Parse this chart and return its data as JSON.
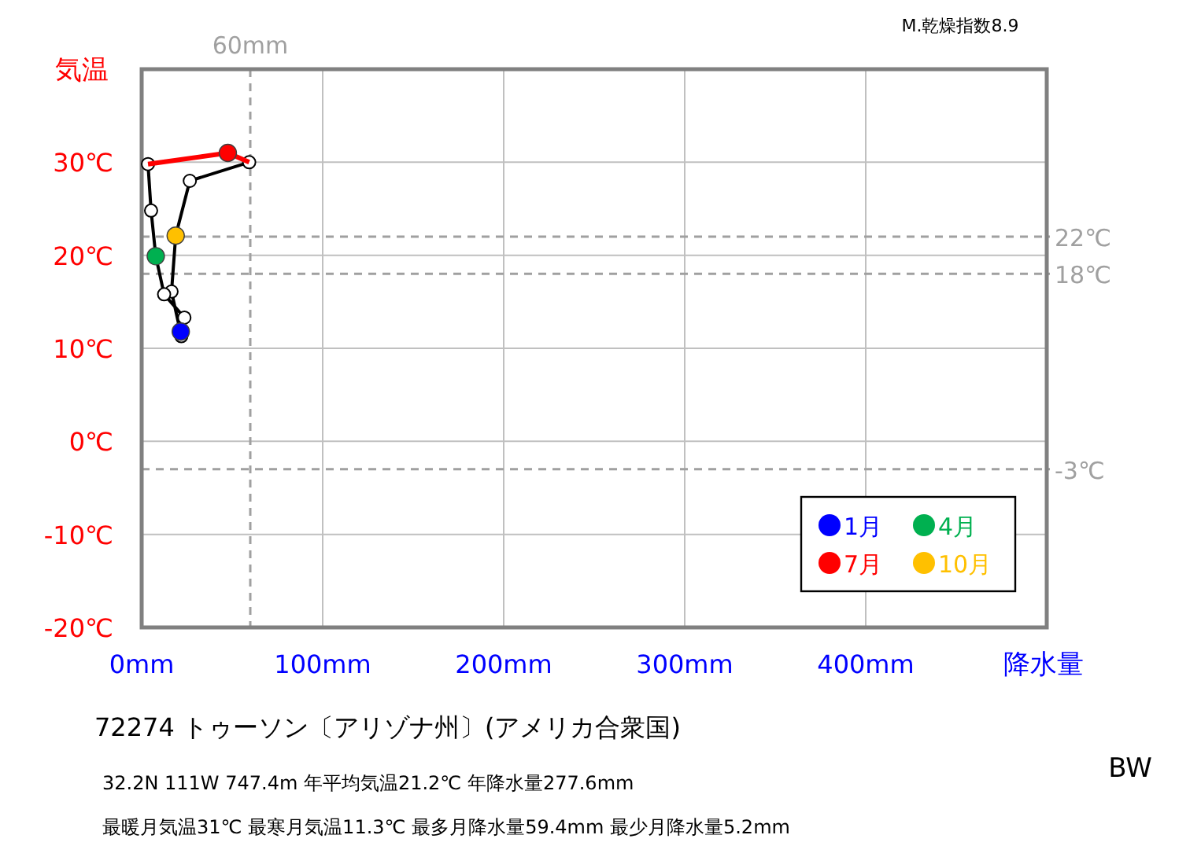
{
  "chart_data": {
    "type": "line",
    "title": "72274 トゥーソン〔アリゾナ州〕(アメリカ合衆国)",
    "ylabel": "気温",
    "xlabel": "降水量",
    "annotations": [
      "M.乾燥指数8.9",
      "32.2N 111W 747.4m 年平均気温21.2℃ 年降水量277.6mm",
      "最暖月気温31℃ 最寒月気温11.3℃ 最多月降水量59.4mm 最少月降水量5.2mm",
      "BW"
    ],
    "xlim": [
      0,
      500
    ],
    "ylim": [
      -20,
      40
    ],
    "xticks": [
      {
        "value": 0,
        "label": "0mm"
      },
      {
        "value": 100,
        "label": "100mm"
      },
      {
        "value": 200,
        "label": "200mm"
      },
      {
        "value": 300,
        "label": "300mm"
      },
      {
        "value": 400,
        "label": "400mm"
      }
    ],
    "yticks": [
      {
        "value": -20,
        "label": "-20℃"
      },
      {
        "value": -10,
        "label": "-10℃"
      },
      {
        "value": 0,
        "label": "0℃"
      },
      {
        "value": 10,
        "label": "10℃"
      },
      {
        "value": 20,
        "label": "20℃"
      },
      {
        "value": 30,
        "label": "30℃"
      }
    ],
    "grid": true,
    "legend": "bottom right",
    "ref_lines": [
      {
        "axis": "y",
        "value": 22,
        "label": "22℃",
        "color": "#a0a0a0",
        "line_style": "dashed"
      },
      {
        "axis": "y",
        "value": 18,
        "label": "18℃",
        "color": "#a0a0a0",
        "line_style": "dashed"
      },
      {
        "axis": "y",
        "value": -3,
        "label": "-3℃",
        "color": "#a0a0a0",
        "line_style": "dashed"
      },
      {
        "axis": "x",
        "value": 60,
        "label": "60mm",
        "color": "#a0a0a0",
        "line_style": "dashed"
      }
    ],
    "series": [
      {
        "type": "line",
        "color": "#000000",
        "marker": "circle",
        "x": [
          59.4,
          26.6,
          18.8,
          16.5,
          21.9,
          21.6,
          23.6,
          12.4,
          7.8,
          5.2,
          3.5
        ],
        "values": [
          30.0,
          28.0,
          22.1,
          16.1,
          11.3,
          11.8,
          13.3,
          15.8,
          19.9,
          24.8,
          29.8
        ]
      },
      {
        "type": "line",
        "color": "#ff0000",
        "marker": "none",
        "x": [
          3.5,
          47.6,
          59.4
        ],
        "values": [
          29.8,
          31.0,
          30.0
        ]
      },
      {
        "type": "scatter",
        "name": "1月",
        "color": "#0000ff",
        "x": [
          21.6
        ],
        "values": [
          11.8
        ]
      },
      {
        "type": "scatter",
        "name": "4月",
        "color": "#00b050",
        "x": [
          7.8
        ],
        "values": [
          19.9
        ]
      },
      {
        "type": "scatter",
        "name": "7月",
        "color": "#ff0000",
        "x": [
          47.6
        ],
        "values": [
          31.0
        ]
      },
      {
        "type": "scatter",
        "name": "10月",
        "color": "#ffc000",
        "x": [
          18.8
        ],
        "values": [
          22.1
        ]
      }
    ]
  }
}
